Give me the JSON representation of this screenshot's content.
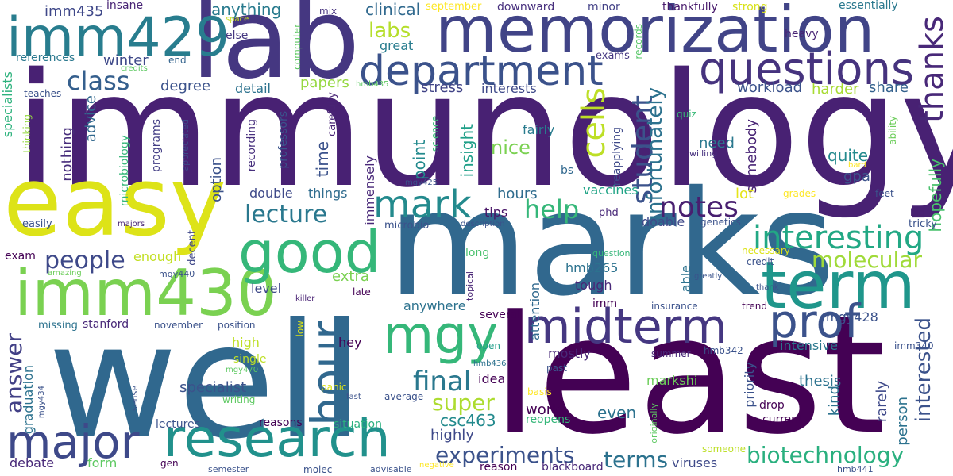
{
  "words": [
    {
      "text": "immunology",
      "color": "#482173"
    },
    {
      "text": "well",
      "color": "#30688e"
    },
    {
      "text": "least",
      "color": "#440154"
    },
    {
      "text": "marks",
      "color": "#31688e"
    },
    {
      "text": "lab",
      "color": "#453781"
    },
    {
      "text": "memorization",
      "color": "#414487"
    },
    {
      "text": "easy",
      "color": "#dde318"
    },
    {
      "text": "imm429",
      "color": "#287d8e"
    },
    {
      "text": "imm430",
      "color": "#7ad151"
    },
    {
      "text": "good",
      "color": "#35b779"
    },
    {
      "text": "term",
      "color": "#1f968b"
    },
    {
      "text": "department",
      "color": "#3b528b"
    },
    {
      "text": "questions",
      "color": "#46337e"
    },
    {
      "text": "midterm",
      "color": "#453781"
    },
    {
      "text": "research",
      "color": "#21918c"
    },
    {
      "text": "mgy",
      "color": "#35b779"
    },
    {
      "text": "prof",
      "color": "#3b528b"
    },
    {
      "text": "major",
      "color": "#3e4989"
    },
    {
      "text": "hour",
      "color": "#31688e"
    },
    {
      "text": "mark",
      "color": "#238a8d"
    },
    {
      "text": "interesting",
      "color": "#22a884"
    },
    {
      "text": "thanks",
      "color": "#482878"
    },
    {
      "text": "cells",
      "color": "#bddf26"
    },
    {
      "text": "student",
      "color": "#3b528b"
    },
    {
      "text": "unfortunately",
      "color": "#2c728e"
    },
    {
      "text": "notes",
      "color": "#481f70"
    },
    {
      "text": "lecture",
      "color": "#2a788e"
    },
    {
      "text": "help",
      "color": "#35b779"
    },
    {
      "text": "class",
      "color": "#355f8d"
    },
    {
      "text": "final",
      "color": "#2a788e"
    },
    {
      "text": "people",
      "color": "#3e4989"
    },
    {
      "text": "molecular",
      "color": "#a0da39"
    },
    {
      "text": "biotechnology",
      "color": "#2ab07f"
    },
    {
      "text": "experiments",
      "color": "#3b528b"
    },
    {
      "text": "terms",
      "color": "#2c728e"
    },
    {
      "text": "super",
      "color": "#addc30"
    },
    {
      "text": "answer",
      "color": "#424086"
    },
    {
      "text": "interested",
      "color": "#3b528b"
    },
    {
      "text": "labs",
      "color": "#b5de2b"
    },
    {
      "text": "clinical",
      "color": "#30698e"
    },
    {
      "text": "anything",
      "color": "#297b8e"
    },
    {
      "text": "imm435",
      "color": "#3f4889"
    },
    {
      "text": "insane",
      "color": "#482475"
    },
    {
      "text": "september",
      "color": "#fde725"
    },
    {
      "text": "downward",
      "color": "#472f7d"
    },
    {
      "text": "minor",
      "color": "#424086"
    },
    {
      "text": "thankfully",
      "color": "#481a6c"
    },
    {
      "text": "strong",
      "color": "#d8e219"
    },
    {
      "text": "essentially",
      "color": "#2a788e"
    },
    {
      "text": "mix",
      "color": "#46327e"
    },
    {
      "text": "space",
      "color": "#c8e020"
    },
    {
      "text": "else",
      "color": "#453781"
    },
    {
      "text": "computer",
      "color": "#5ec962"
    },
    {
      "text": "records",
      "color": "#56c667"
    },
    {
      "text": "heavy",
      "color": "#482475"
    },
    {
      "text": "references",
      "color": "#2a788e"
    },
    {
      "text": "end",
      "color": "#33638d"
    },
    {
      "text": "credits",
      "color": "#5ec962"
    },
    {
      "text": "winter",
      "color": "#3e4989"
    },
    {
      "text": "great",
      "color": "#287c8e"
    },
    {
      "text": "exams",
      "color": "#453781"
    },
    {
      "text": "degree",
      "color": "#3b528b"
    },
    {
      "text": "papers",
      "color": "#95d840"
    },
    {
      "text": "hmb435",
      "color": "#5ec962"
    },
    {
      "text": "stress",
      "color": "#414487"
    },
    {
      "text": "interests",
      "color": "#3e4989"
    },
    {
      "text": "workload",
      "color": "#3b528b"
    },
    {
      "text": "harder",
      "color": "#a8db34"
    },
    {
      "text": "share",
      "color": "#34618d"
    },
    {
      "text": "teaches",
      "color": "#3b528b"
    },
    {
      "text": "specialists",
      "color": "#2db27d"
    },
    {
      "text": "thinking",
      "color": "#95d840"
    },
    {
      "text": "nothing",
      "color": "#472d7b"
    },
    {
      "text": "advice",
      "color": "#31688e"
    },
    {
      "text": "microbiology",
      "color": "#35b779"
    },
    {
      "text": "programs",
      "color": "#433e85"
    },
    {
      "text": "appreciated",
      "color": "#3e4989"
    },
    {
      "text": "decent",
      "color": "#3f4788"
    },
    {
      "text": "recording",
      "color": "#472f7d"
    },
    {
      "text": "professors",
      "color": "#3a548c"
    },
    {
      "text": "carefully",
      "color": "#482475"
    },
    {
      "text": "detail",
      "color": "#2c728e"
    },
    {
      "text": "time",
      "color": "#3b528b"
    },
    {
      "text": "point",
      "color": "#238a8d"
    },
    {
      "text": "insight",
      "color": "#1f9f88"
    },
    {
      "text": "fairly",
      "color": "#297b8e"
    },
    {
      "text": "science",
      "color": "#3aba76"
    },
    {
      "text": "reapplying",
      "color": "#3e4989"
    },
    {
      "text": "quiz",
      "color": "#38b977"
    },
    {
      "text": "willing",
      "color": "#46307e"
    },
    {
      "text": "ability",
      "color": "#6ccd5a"
    },
    {
      "text": "bard",
      "color": "#fde725"
    },
    {
      "text": "need",
      "color": "#2a788e"
    },
    {
      "text": "somebody",
      "color": "#482475"
    },
    {
      "text": "quite",
      "color": "#238a8d"
    },
    {
      "text": "gpa",
      "color": "#3b528b"
    },
    {
      "text": "hopefully",
      "color": "#4ac16d"
    },
    {
      "text": "option",
      "color": "#3b528b"
    },
    {
      "text": "immensely",
      "color": "#482878"
    },
    {
      "text": "nice",
      "color": "#7ad151"
    },
    {
      "text": "bs",
      "color": "#31688e"
    },
    {
      "text": "mgy425",
      "color": "#3b528b"
    },
    {
      "text": "double",
      "color": "#3e4989"
    },
    {
      "text": "things",
      "color": "#2f6c8e"
    },
    {
      "text": "vaccines",
      "color": "#20a486"
    },
    {
      "text": "lot",
      "color": "#e5e419"
    },
    {
      "text": "grades",
      "color": "#fde725"
    },
    {
      "text": "feet",
      "color": "#3b528b"
    },
    {
      "text": "hours",
      "color": "#2f6c8e"
    },
    {
      "text": "tips",
      "color": "#481467"
    },
    {
      "text": "phd",
      "color": "#482878"
    },
    {
      "text": "doable",
      "color": "#3e4989"
    },
    {
      "text": "genetics",
      "color": "#3b528b"
    },
    {
      "text": "bio",
      "color": "#482071"
    },
    {
      "text": "tricky",
      "color": "#3b528b"
    },
    {
      "text": "easily",
      "color": "#3b528b"
    },
    {
      "text": "majors",
      "color": "#482575"
    },
    {
      "text": "microbio",
      "color": "#3b528b"
    },
    {
      "text": "description",
      "color": "#3b528b"
    },
    {
      "text": "credit",
      "color": "#3b528b"
    },
    {
      "text": "necessary",
      "color": "#dde318"
    },
    {
      "text": "exam",
      "color": "#440154"
    },
    {
      "text": "enough",
      "color": "#c2df23"
    },
    {
      "text": "long",
      "color": "#4ac16d"
    },
    {
      "text": "question",
      "color": "#34b679"
    },
    {
      "text": "hmb265",
      "color": "#2c728e"
    },
    {
      "text": "able",
      "color": "#2c728e"
    },
    {
      "text": "greatly",
      "color": "#3a548c"
    },
    {
      "text": "mgy440",
      "color": "#3b528b"
    },
    {
      "text": "amazing",
      "color": "#6ccd5a"
    },
    {
      "text": "extra",
      "color": "#7ad151"
    },
    {
      "text": "topical",
      "color": "#482475"
    },
    {
      "text": "tough",
      "color": "#482878"
    },
    {
      "text": "level",
      "color": "#3e4989"
    },
    {
      "text": "late",
      "color": "#440154"
    },
    {
      "text": "imm",
      "color": "#440154"
    },
    {
      "text": "insurance",
      "color": "#3b528b"
    },
    {
      "text": "thank",
      "color": "#3b528b"
    },
    {
      "text": "trend",
      "color": "#440154"
    },
    {
      "text": "killer",
      "color": "#482173"
    },
    {
      "text": "anywhere",
      "color": "#2c728e"
    },
    {
      "text": "attention",
      "color": "#30698e"
    },
    {
      "text": "missing",
      "color": "#2c728e"
    },
    {
      "text": "stanford",
      "color": "#482878"
    },
    {
      "text": "november",
      "color": "#3b528b"
    },
    {
      "text": "position",
      "color": "#3b528b"
    },
    {
      "text": "several",
      "color": "#440154"
    },
    {
      "text": "low",
      "color": "#dde318"
    },
    {
      "text": "mgy428",
      "color": "#3b528b"
    },
    {
      "text": "high",
      "color": "#bddf26"
    },
    {
      "text": "hey",
      "color": "#440154"
    },
    {
      "text": "open",
      "color": "#1f9e89"
    },
    {
      "text": "intensive",
      "color": "#2a788e"
    },
    {
      "text": "imm340",
      "color": "#3b528b"
    },
    {
      "text": "single",
      "color": "#bddf26"
    },
    {
      "text": "mgy470",
      "color": "#5ec962"
    },
    {
      "text": "graduation",
      "color": "#2c728e"
    },
    {
      "text": "mostly",
      "color": "#482878"
    },
    {
      "text": "idea",
      "color": "#440154"
    },
    {
      "text": "hmb436",
      "color": "#2c728e"
    },
    {
      "text": "summer",
      "color": "#482878"
    },
    {
      "text": "hmb342",
      "color": "#3b528b"
    },
    {
      "text": "markshi",
      "color": "#6ccd5a"
    },
    {
      "text": "thesis",
      "color": "#2c728e"
    },
    {
      "text": "kind",
      "color": "#2c728e"
    },
    {
      "text": "priority",
      "color": "#3b528b"
    },
    {
      "text": "rarely",
      "color": "#3e4989"
    },
    {
      "text": "person",
      "color": "#2c728e"
    },
    {
      "text": "specialist",
      "color": "#3b528b"
    },
    {
      "text": "panic",
      "color": "#dde318"
    },
    {
      "text": "past",
      "color": "#3b528b"
    },
    {
      "text": "sense",
      "color": "#3b528b"
    },
    {
      "text": "mgy434",
      "color": "#3b528b"
    },
    {
      "text": "writing",
      "color": "#5ec962"
    },
    {
      "text": "fast",
      "color": "#3b528b"
    },
    {
      "text": "average",
      "color": "#3b528b"
    },
    {
      "text": "basis",
      "color": "#fde725"
    },
    {
      "text": "work",
      "color": "#440154"
    },
    {
      "text": "csc463",
      "color": "#238a8d"
    },
    {
      "text": "even",
      "color": "#2c728e"
    },
    {
      "text": "drop",
      "color": "#440154"
    },
    {
      "text": "originally",
      "color": "#5ec962"
    },
    {
      "text": "reopens",
      "color": "#35b779"
    },
    {
      "text": "current",
      "color": "#440154"
    },
    {
      "text": "highly",
      "color": "#3e4989"
    },
    {
      "text": "reasons",
      "color": "#440154"
    },
    {
      "text": "situation",
      "color": "#2ab07f"
    },
    {
      "text": "lectures",
      "color": "#3b528b"
    },
    {
      "text": "debate",
      "color": "#482878"
    },
    {
      "text": "form",
      "color": "#5ec962"
    },
    {
      "text": "gen",
      "color": "#440154"
    },
    {
      "text": "someone",
      "color": "#bddf26"
    },
    {
      "text": "viruses",
      "color": "#3e4989"
    },
    {
      "text": "hmb441",
      "color": "#3b528b"
    },
    {
      "text": "semester",
      "color": "#3b528b"
    },
    {
      "text": "molec",
      "color": "#3b528b"
    },
    {
      "text": "advisable",
      "color": "#3b528b"
    },
    {
      "text": "negative",
      "color": "#fde725"
    },
    {
      "text": "reason",
      "color": "#440154"
    },
    {
      "text": "blackboard",
      "color": "#482878"
    }
  ]
}
